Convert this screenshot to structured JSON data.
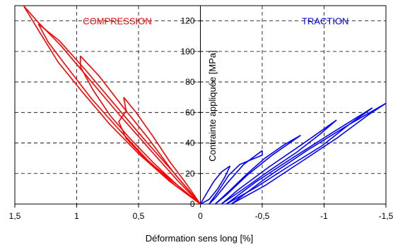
{
  "chart_data": {
    "type": "line",
    "xlabel": "Déformation sens long [%]",
    "ylabel": "Contrainte appliquée [MPa]",
    "xlim": [
      1.5,
      -1.5
    ],
    "ylim": [
      0,
      130
    ],
    "x_axis_reversed": true,
    "grid": true,
    "grid_style": "dashed",
    "x_ticks": [
      1.5,
      1,
      0.5,
      0,
      -0.5,
      -1,
      -1.5
    ],
    "x_tick_labels": [
      "1,5",
      "1",
      "0,5",
      "0",
      "-0,5",
      "-1",
      "-1,5"
    ],
    "y_ticks": [
      0,
      20,
      40,
      60,
      80,
      100,
      120
    ],
    "y_tick_labels": [
      "0",
      "20",
      "40",
      "60",
      "80",
      "100",
      "120"
    ],
    "annotations": [
      {
        "text": "COMPRESSION",
        "color": "#ff0000",
        "x": 0.95,
        "y": 120
      },
      {
        "text": "TRACTION",
        "color": "#0000ff",
        "x": -0.82,
        "y": 120
      }
    ],
    "series": [
      {
        "color": "#ff0000",
        "cycles": [
          {
            "up": [
              [
                0,
                0
              ],
              [
                0.12,
                8
              ],
              [
                0.27,
                18
              ],
              [
                0.45,
                30
              ],
              [
                0.6,
                43
              ],
              [
                0.66,
                54
              ],
              [
                0.6,
                61
              ],
              [
                0.62,
                70
              ]
            ],
            "down": [
              [
                0.62,
                70
              ],
              [
                0.52,
                60
              ],
              [
                0.38,
                44
              ],
              [
                0.25,
                28
              ],
              [
                0.12,
                14
              ],
              [
                0,
                0
              ]
            ]
          },
          {
            "up": [
              [
                0,
                0
              ],
              [
                0.18,
                12
              ],
              [
                0.38,
                27
              ],
              [
                0.57,
                43
              ],
              [
                0.73,
                58
              ],
              [
                0.87,
                75
              ],
              [
                0.97,
                90
              ],
              [
                0.97,
                97
              ]
            ],
            "down": [
              [
                0.97,
                97
              ],
              [
                0.82,
                84
              ],
              [
                0.62,
                63
              ],
              [
                0.42,
                43
              ],
              [
                0.22,
                21
              ],
              [
                0,
                0
              ]
            ]
          },
          {
            "up": [
              [
                0,
                0
              ],
              [
                0.2,
                12
              ],
              [
                0.43,
                29
              ],
              [
                0.66,
                49
              ],
              [
                0.88,
                69
              ],
              [
                1.08,
                90
              ],
              [
                1.23,
                106
              ],
              [
                1.31,
                118
              ]
            ],
            "down": [
              [
                1.31,
                118
              ],
              [
                1.14,
                107
              ],
              [
                0.92,
                87
              ],
              [
                0.68,
                64
              ],
              [
                0.45,
                42
              ],
              [
                0.22,
                21
              ],
              [
                0,
                0
              ]
            ]
          },
          {
            "up": [
              [
                0,
                0
              ],
              [
                0.25,
                15
              ],
              [
                0.5,
                33
              ],
              [
                0.73,
                52
              ],
              [
                0.95,
                73
              ],
              [
                1.15,
                93
              ],
              [
                1.31,
                114
              ],
              [
                1.43,
                130
              ]
            ],
            "down": [
              [
                1.43,
                130
              ],
              [
                1.31,
                119
              ],
              [
                1.13,
                104
              ],
              [
                0.9,
                82
              ],
              [
                0.65,
                58
              ],
              [
                0.4,
                35
              ],
              [
                0.18,
                15
              ],
              [
                0,
                0
              ]
            ]
          }
        ]
      },
      {
        "color": "#0000ff",
        "cycles": [
          {
            "up": [
              [
                0,
                0
              ],
              [
                -0.05,
                7
              ],
              [
                -0.11,
                15
              ],
              [
                -0.17,
                21
              ],
              [
                -0.24,
                25
              ]
            ],
            "down": [
              [
                -0.24,
                25
              ],
              [
                -0.2,
                18
              ],
              [
                -0.14,
                10
              ],
              [
                -0.07,
                3
              ],
              [
                0,
                0
              ]
            ]
          },
          {
            "up": [
              [
                -0.07,
                0
              ],
              [
                -0.15,
                9
              ],
              [
                -0.23,
                19
              ],
              [
                -0.32,
                26
              ],
              [
                -0.5,
                32
              ],
              [
                -0.5,
                35
              ]
            ],
            "down": [
              [
                -0.5,
                35
              ],
              [
                -0.35,
                26
              ],
              [
                -0.22,
                14
              ],
              [
                -0.12,
                4
              ],
              [
                -0.07,
                0
              ]
            ]
          },
          {
            "up": [
              [
                -0.12,
                0
              ],
              [
                -0.24,
                9
              ],
              [
                -0.38,
                20
              ],
              [
                -0.52,
                30
              ],
              [
                -0.68,
                39
              ],
              [
                -0.81,
                45
              ]
            ],
            "down": [
              [
                -0.81,
                45
              ],
              [
                -0.58,
                32
              ],
              [
                -0.38,
                19
              ],
              [
                -0.21,
                6
              ],
              [
                -0.12,
                0
              ]
            ]
          },
          {
            "up": [
              [
                -0.17,
                0
              ],
              [
                -0.35,
                10
              ],
              [
                -0.56,
                22
              ],
              [
                -0.78,
                34
              ],
              [
                -0.97,
                46
              ],
              [
                -1.1,
                55
              ]
            ],
            "down": [
              [
                -1.1,
                55
              ],
              [
                -0.82,
                39
              ],
              [
                -0.55,
                24
              ],
              [
                -0.3,
                9
              ],
              [
                -0.17,
                0
              ]
            ]
          },
          {
            "up": [
              [
                -0.21,
                0
              ],
              [
                -0.45,
                11
              ],
              [
                -0.72,
                25
              ],
              [
                -0.98,
                38
              ],
              [
                -1.2,
                52
              ],
              [
                -1.39,
                63
              ]
            ],
            "down": [
              [
                -1.39,
                63
              ],
              [
                -1.07,
                47
              ],
              [
                -0.74,
                30
              ],
              [
                -0.44,
                14
              ],
              [
                -0.21,
                0
              ]
            ]
          },
          {
            "up": [
              [
                -0.25,
                0
              ],
              [
                -0.52,
                12
              ],
              [
                -0.82,
                28
              ],
              [
                -1.1,
                43
              ],
              [
                -1.35,
                58
              ],
              [
                -1.5,
                66
              ]
            ],
            "down": [
              [
                -1.5,
                66
              ],
              [
                -1.2,
                52
              ],
              [
                -0.86,
                35
              ],
              [
                -0.53,
                17
              ],
              [
                -0.25,
                0
              ]
            ]
          }
        ]
      }
    ]
  }
}
